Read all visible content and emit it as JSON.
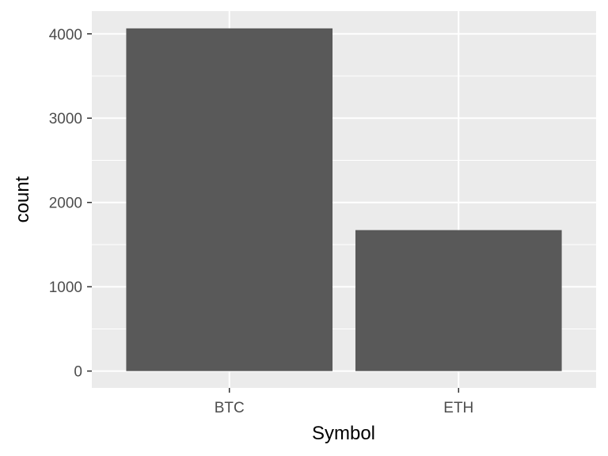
{
  "chart_data": {
    "type": "bar",
    "title": "",
    "xlabel": "Symbol",
    "ylabel": "count",
    "categories": [
      "BTC",
      "ETH"
    ],
    "values": [
      4065,
      1672
    ],
    "ylim": [
      -200,
      4270
    ],
    "yticks": [
      0,
      1000,
      2000,
      3000,
      4000
    ],
    "grid": true,
    "colors": {
      "panel_background": "#ebebeb",
      "grid": "#ffffff",
      "bar_fill": "#595959",
      "tick_text": "#4d4d4d",
      "tick_mark": "#333333"
    }
  }
}
